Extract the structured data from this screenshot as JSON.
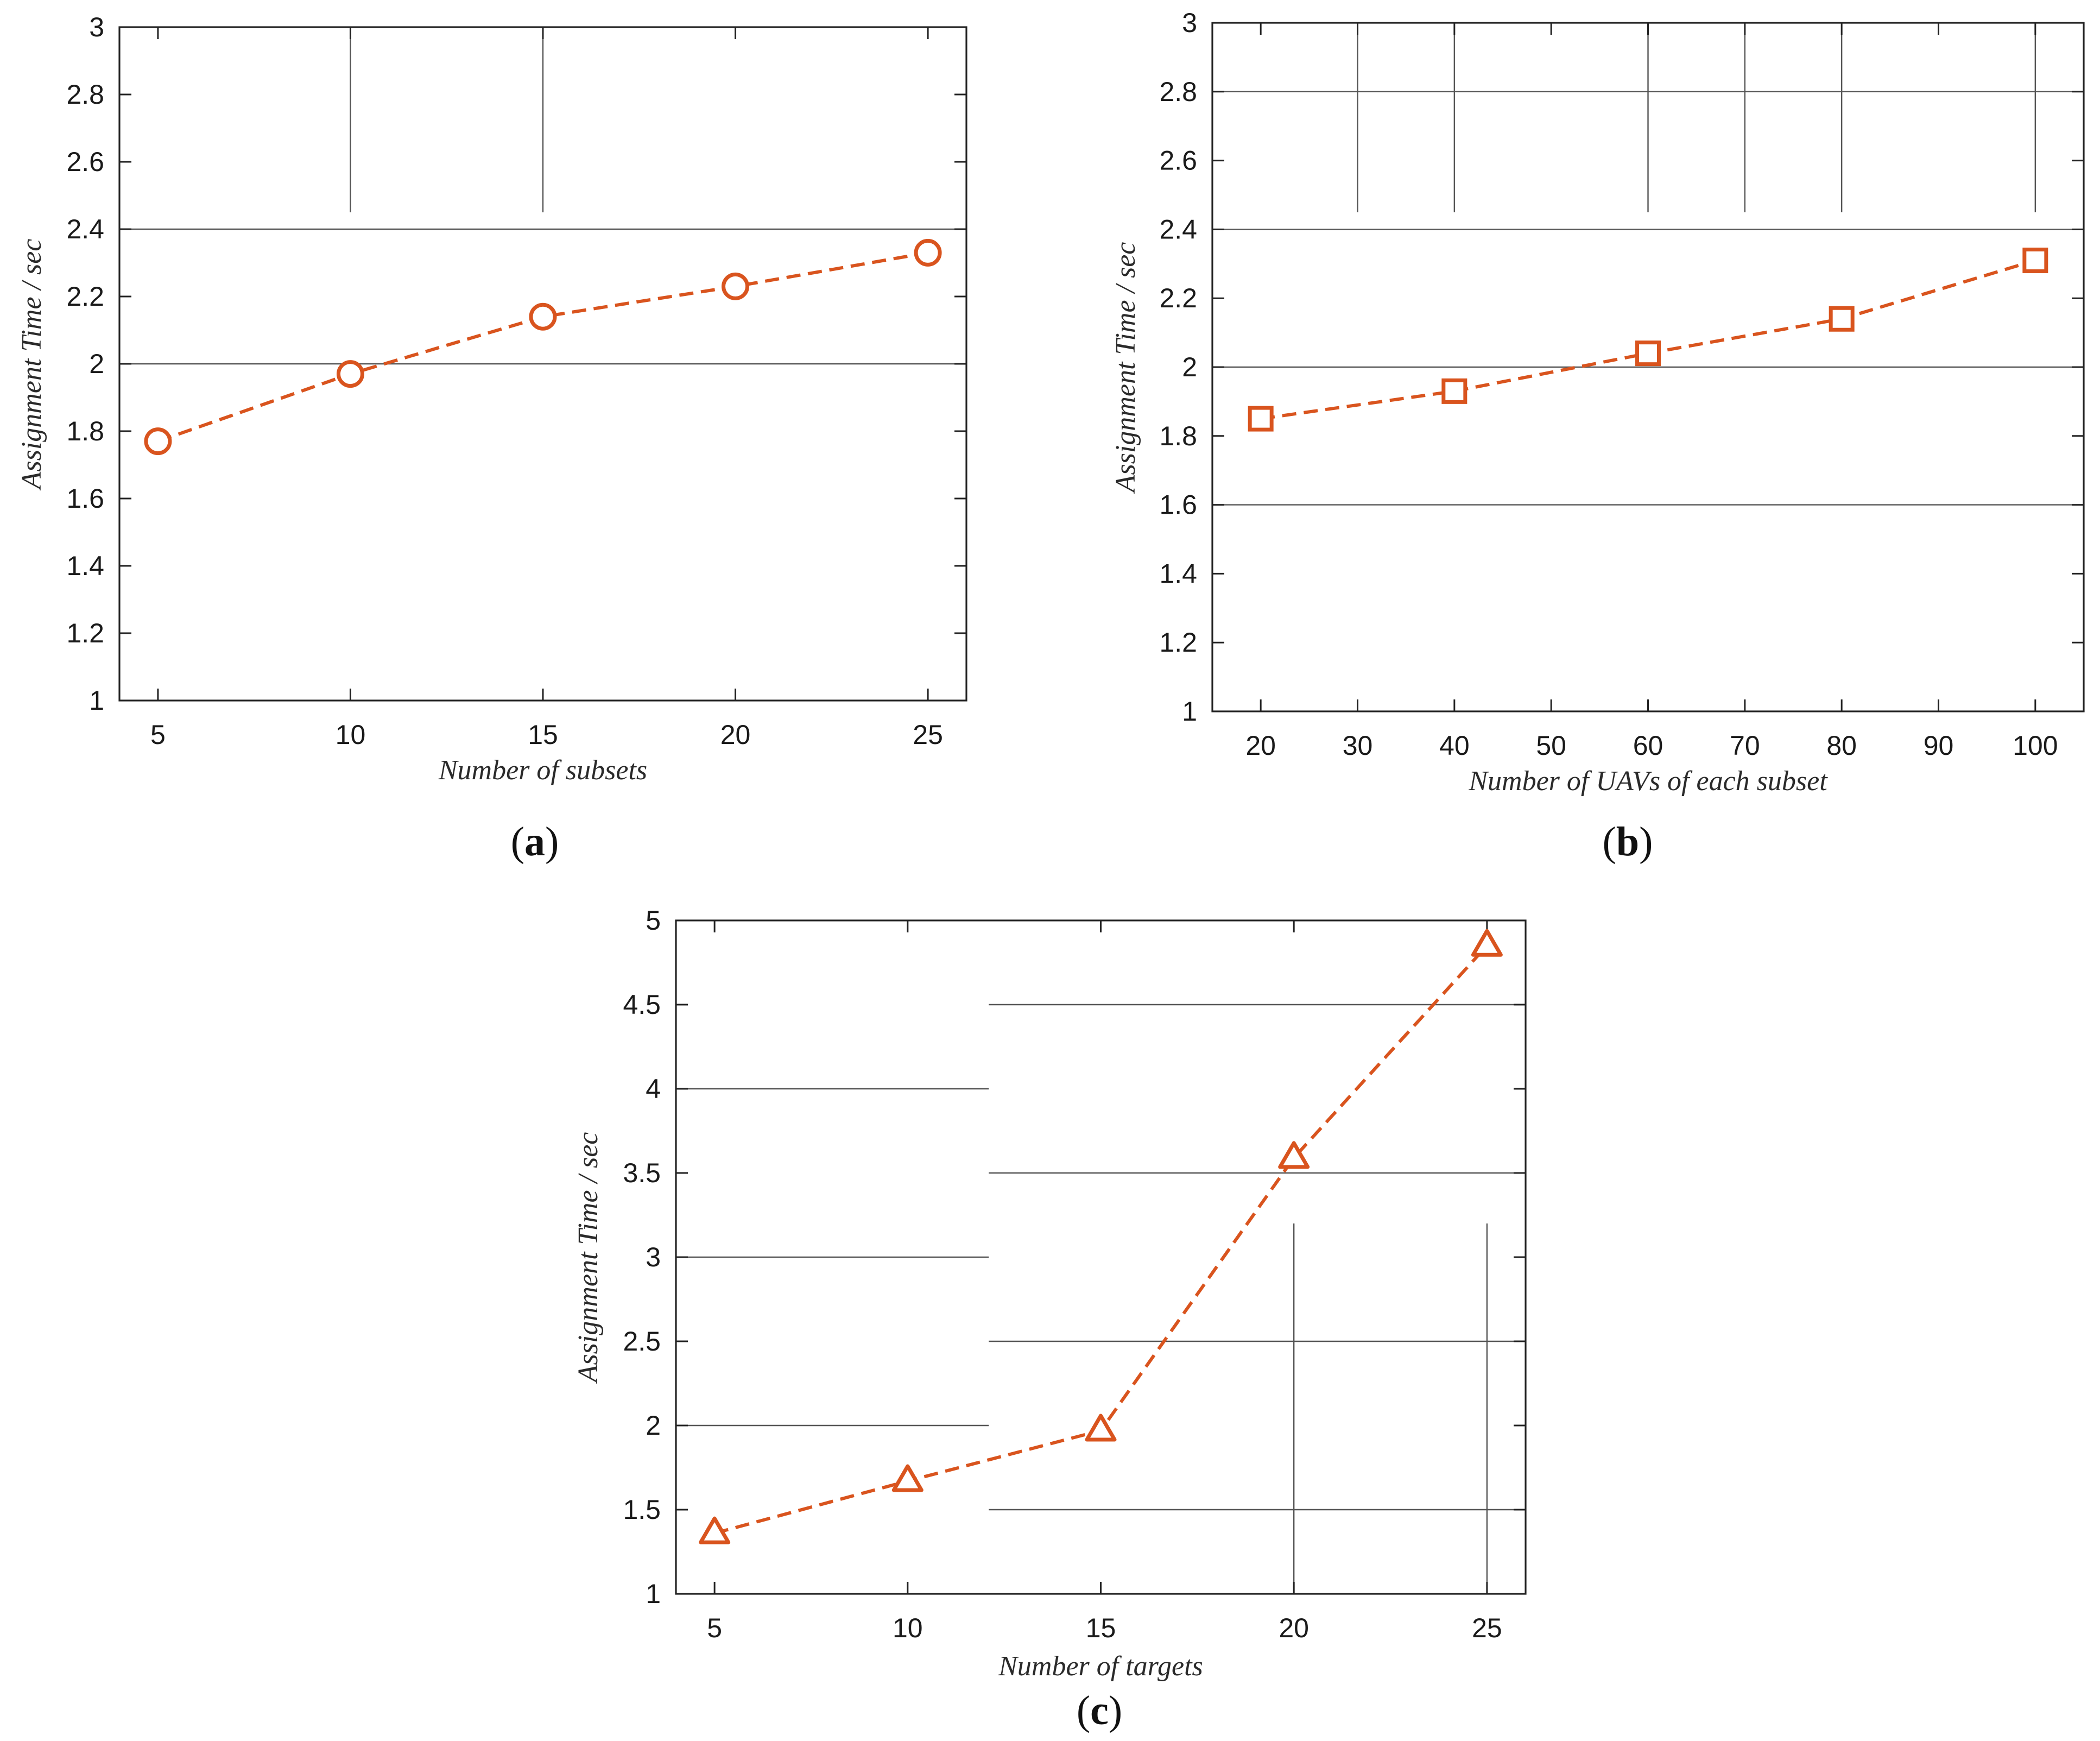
{
  "chart_data": [
    {
      "panel": "a",
      "type": "line",
      "xlabel": "Number of subsets",
      "ylabel": "Assignment Time / sec",
      "x": [
        5,
        10,
        15,
        20,
        25
      ],
      "xlim": [
        4,
        26
      ],
      "ylim": [
        1,
        3
      ],
      "xticks": [
        5,
        10,
        15,
        20,
        25
      ],
      "yticks": [
        1,
        1.2,
        1.4,
        1.6,
        1.8,
        2,
        2.2,
        2.4,
        2.6,
        2.8,
        3
      ],
      "series": [
        {
          "values": [
            1.77,
            1.97,
            2.14,
            2.23,
            2.33
          ],
          "marker": "circle",
          "color": "#d9541e",
          "linestyle": "dashed"
        }
      ],
      "grid": "partial"
    },
    {
      "panel": "b",
      "type": "line",
      "xlabel": "Number of UAVs of each subset",
      "ylabel": "Assignment Time / sec",
      "x": [
        20,
        40,
        60,
        80,
        100
      ],
      "xlim": [
        15,
        105
      ],
      "ylim": [
        1,
        3
      ],
      "xticks": [
        20,
        30,
        40,
        50,
        60,
        70,
        80,
        90,
        100
      ],
      "yticks": [
        1,
        1.2,
        1.4,
        1.6,
        1.8,
        2,
        2.2,
        2.4,
        2.6,
        2.8,
        3
      ],
      "series": [
        {
          "values": [
            1.85,
            1.93,
            2.04,
            2.14,
            2.31
          ],
          "marker": "square",
          "color": "#d9541e",
          "linestyle": "dashed"
        }
      ],
      "grid": "partial"
    },
    {
      "panel": "c",
      "type": "line",
      "xlabel": "Number of targets",
      "ylabel": "Assignment Time / sec",
      "x": [
        5,
        10,
        15,
        20,
        25
      ],
      "xlim": [
        4,
        26
      ],
      "ylim": [
        1,
        5
      ],
      "xticks": [
        5,
        10,
        15,
        20,
        25
      ],
      "yticks": [
        1,
        1.5,
        2,
        2.5,
        3,
        3.5,
        4,
        4.5,
        5
      ],
      "series": [
        {
          "values": [
            1.36,
            1.67,
            1.97,
            3.59,
            4.85
          ],
          "marker": "triangle",
          "color": "#d9541e",
          "linestyle": "dashed"
        }
      ],
      "grid": "partial"
    }
  ],
  "captions": {
    "a": {
      "open": "(",
      "letter": "a",
      "close": ")"
    },
    "b": {
      "open": "(",
      "letter": "b",
      "close": ")"
    },
    "c": {
      "open": "(",
      "letter": "c",
      "close": ")"
    }
  },
  "colors": {
    "series": "#d9541e",
    "axis": "#222222",
    "grid": "#555555"
  }
}
